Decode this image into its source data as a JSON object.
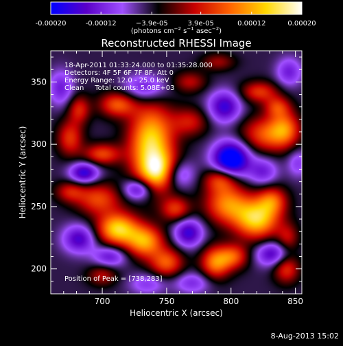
{
  "chart_data": {
    "type": "heatmap",
    "title": "Reconstructed RHESSI Image",
    "xlabel": "Heliocentric X (arcsec)",
    "ylabel": "Heliocentric Y (arcsec)",
    "xlim": [
      660,
      855
    ],
    "ylim": [
      180,
      375
    ],
    "x_ticks": [
      700,
      750,
      800,
      850
    ],
    "y_ticks": [
      200,
      250,
      300,
      350
    ],
    "colorbar": {
      "range": [
        -0.0002,
        0.0002
      ],
      "tick_values": [
        -0.0002,
        -0.00012,
        -3.9e-05,
        3.9e-05,
        0.00012,
        0.0002
      ],
      "tick_labels": [
        "-0.00020",
        "-0.00012",
        "−3.9e-05",
        "3.9e-05",
        "0.00012",
        "0.00020"
      ],
      "unit_label_parts": [
        "(photons cm",
        "−2",
        " s",
        "−1",
        " asec",
        "−2",
        ")"
      ]
    },
    "colormap": [
      "#0000ff",
      "#5a00c8",
      "#a050ff",
      "#000000",
      "#c80000",
      "#ff6400",
      "#ffd800",
      "#ffffff"
    ],
    "info_lines": [
      "18-Apr-2011 01:33:24.000 to 01:35:28.000",
      "Detectors: 4F 5F 6F 7F 8F, Att 0",
      "Energy Range: 12.0 - 25.0 keV",
      "Clean     Total counts: 5.08E+03"
    ],
    "peak_label": "Position of Peak = [738,283]",
    "features": [
      {
        "x": 738,
        "y": 300,
        "value": 0.0002,
        "sx": 12,
        "sy": 22
      },
      {
        "x": 745,
        "y": 278,
        "value": 0.00015,
        "sx": 10,
        "sy": 10
      },
      {
        "x": 712,
        "y": 332,
        "value": 0.00012,
        "sx": 10,
        "sy": 7
      },
      {
        "x": 700,
        "y": 292,
        "value": 0.00011,
        "sx": 10,
        "sy": 6
      },
      {
        "x": 675,
        "y": 305,
        "value": 0.0001,
        "sx": 7,
        "sy": 10
      },
      {
        "x": 682,
        "y": 328,
        "value": 9e-05,
        "sx": 6,
        "sy": 8
      },
      {
        "x": 768,
        "y": 318,
        "value": 8e-05,
        "sx": 10,
        "sy": 8
      },
      {
        "x": 768,
        "y": 350,
        "value": 7e-05,
        "sx": 9,
        "sy": 6
      },
      {
        "x": 790,
        "y": 366,
        "value": 6e-05,
        "sx": 9,
        "sy": 5
      },
      {
        "x": 822,
        "y": 342,
        "value": 0.0001,
        "sx": 10,
        "sy": 6
      },
      {
        "x": 836,
        "y": 330,
        "value": 9e-05,
        "sx": 7,
        "sy": 6
      },
      {
        "x": 828,
        "y": 308,
        "value": 0.00012,
        "sx": 14,
        "sy": 10
      },
      {
        "x": 842,
        "y": 313,
        "value": 0.0001,
        "sx": 8,
        "sy": 10
      },
      {
        "x": 820,
        "y": 240,
        "value": 0.00019,
        "sx": 12,
        "sy": 11
      },
      {
        "x": 797,
        "y": 252,
        "value": 0.00014,
        "sx": 12,
        "sy": 11
      },
      {
        "x": 792,
        "y": 272,
        "value": 0.00011,
        "sx": 9,
        "sy": 7
      },
      {
        "x": 832,
        "y": 255,
        "value": 0.00011,
        "sx": 8,
        "sy": 8
      },
      {
        "x": 712,
        "y": 232,
        "value": 0.00019,
        "sx": 11,
        "sy": 9
      },
      {
        "x": 733,
        "y": 222,
        "value": 0.00016,
        "sx": 10,
        "sy": 9
      },
      {
        "x": 750,
        "y": 205,
        "value": 0.00012,
        "sx": 9,
        "sy": 8
      },
      {
        "x": 697,
        "y": 256,
        "value": 0.00011,
        "sx": 12,
        "sy": 9
      },
      {
        "x": 675,
        "y": 262,
        "value": 8e-05,
        "sx": 8,
        "sy": 6
      },
      {
        "x": 757,
        "y": 248,
        "value": 0.0001,
        "sx": 8,
        "sy": 7
      },
      {
        "x": 788,
        "y": 205,
        "value": 0.00014,
        "sx": 8,
        "sy": 9
      },
      {
        "x": 802,
        "y": 210,
        "value": 0.00011,
        "sx": 8,
        "sy": 7
      },
      {
        "x": 843,
        "y": 200,
        "value": 0.0001,
        "sx": 7,
        "sy": 8
      },
      {
        "x": 844,
        "y": 225,
        "value": 7e-05,
        "sx": 6,
        "sy": 8
      },
      {
        "x": 700,
        "y": 195,
        "value": 7e-05,
        "sx": 8,
        "sy": 6
      },
      {
        "x": 800,
        "y": 288,
        "value": -0.0002,
        "sx": 10,
        "sy": 10
      },
      {
        "x": 795,
        "y": 330,
        "value": -0.00012,
        "sx": 9,
        "sy": 9
      },
      {
        "x": 758,
        "y": 276,
        "value": -0.0001,
        "sx": 9,
        "sy": 8
      },
      {
        "x": 767,
        "y": 229,
        "value": -0.00012,
        "sx": 8,
        "sy": 8
      },
      {
        "x": 686,
        "y": 277,
        "value": -0.00013,
        "sx": 8,
        "sy": 6
      },
      {
        "x": 728,
        "y": 264,
        "value": -0.00012,
        "sx": 8,
        "sy": 6
      },
      {
        "x": 682,
        "y": 224,
        "value": -0.00011,
        "sx": 9,
        "sy": 8
      },
      {
        "x": 706,
        "y": 210,
        "value": -9e-05,
        "sx": 9,
        "sy": 6
      },
      {
        "x": 832,
        "y": 212,
        "value": -0.00011,
        "sx": 9,
        "sy": 7
      },
      {
        "x": 825,
        "y": 278,
        "value": -8e-05,
        "sx": 8,
        "sy": 8
      },
      {
        "x": 733,
        "y": 345,
        "value": -9e-05,
        "sx": 12,
        "sy": 8
      },
      {
        "x": 668,
        "y": 345,
        "value": -8e-05,
        "sx": 7,
        "sy": 10
      },
      {
        "x": 845,
        "y": 358,
        "value": -8e-05,
        "sx": 7,
        "sy": 8
      },
      {
        "x": 852,
        "y": 285,
        "value": -6e-05,
        "sx": 6,
        "sy": 8
      },
      {
        "x": 770,
        "y": 189,
        "value": -7e-05,
        "sx": 10,
        "sy": 6
      },
      {
        "x": 735,
        "y": 188,
        "value": -6e-05,
        "sx": 10,
        "sy": 6
      }
    ]
  },
  "footer": {
    "date": "8-Aug-2013 15:02"
  }
}
